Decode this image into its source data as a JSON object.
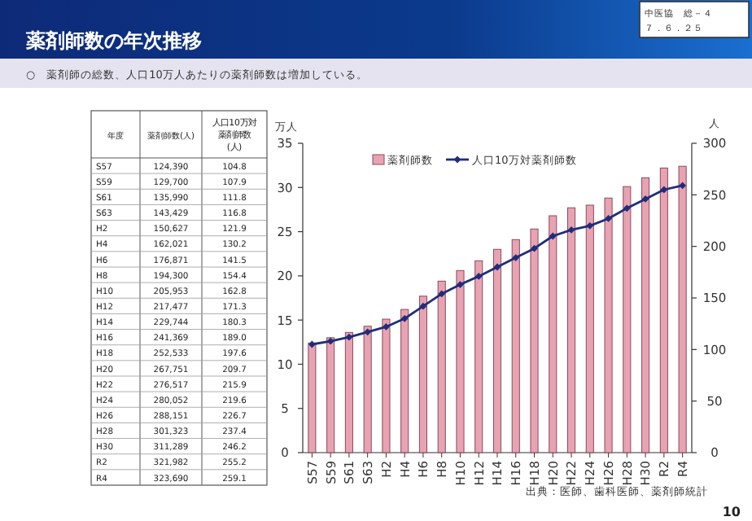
{
  "chart_data": [
    {
      "type": "other",
      "title": "薬剤師数の年次推移",
      "subtitle": "○　薬剤師の総数、人口10万人あたりの薬剤師数は増加している。",
      "xlabel": "年度",
      "categories": [
        "S57",
        "S59",
        "S61",
        "S63",
        "H2",
        "H4",
        "H6",
        "H8",
        "H10",
        "H12",
        "H14",
        "H16",
        "H18",
        "H20",
        "H22",
        "H24",
        "H26",
        "H28",
        "H30",
        "R2",
        "R4"
      ],
      "series": [
        {
          "name": "薬剤師数(人)",
          "values": [
            124390,
            129700,
            135990,
            143429,
            150627,
            162021,
            176871,
            194300,
            205953,
            217477,
            229744,
            241369,
            252533,
            267751,
            276517,
            280052,
            288151,
            301323,
            311289,
            321982,
            323690
          ],
          "value_labels": [
            "124,390",
            "129,700",
            "135,990",
            "143,429",
            "150,627",
            "162,021",
            "176,871",
            "194,300",
            "205,953",
            "217,477",
            "229,744",
            "241,369",
            "252,533",
            "267,751",
            "276,517",
            "280,052",
            "288,151",
            "301,323",
            "311,289",
            "321,982",
            "323,690"
          ]
        },
        {
          "name": "人口10万対薬剤師数(人)",
          "values": [
            104.8,
            107.9,
            111.8,
            116.8,
            121.9,
            130.2,
            141.5,
            154.4,
            162.8,
            171.3,
            180.3,
            189.0,
            197.6,
            209.7,
            215.9,
            219.6,
            226.7,
            237.4,
            246.2,
            255.2,
            259.1
          ],
          "value_labels": [
            "104.8",
            "107.9",
            "111.8",
            "116.8",
            "121.9",
            "130.2",
            "141.5",
            "154.4",
            "162.8",
            "171.3",
            "180.3",
            "189.0",
            "197.6",
            "209.7",
            "215.9",
            "219.6",
            "226.7",
            "237.4",
            "246.2",
            "255.2",
            "259.1"
          ]
        }
      ],
      "annotations": [
        "中医協　総－４",
        "７．６．２５",
        "10"
      ]
    },
    {
      "type": "bar",
      "ylabel": "万人",
      "y2label": "人",
      "categories": [
        "S57",
        "S59",
        "S61",
        "S63",
        "H2",
        "H4",
        "H6",
        "H8",
        "H10",
        "H12",
        "H14",
        "H16",
        "H18",
        "H20",
        "H22",
        "H24",
        "H26",
        "H28",
        "H30",
        "R2",
        "R4"
      ],
      "series": [
        {
          "name": "薬剤師数",
          "type": "bar",
          "color": "#e8a3b3",
          "values": [
            12.4,
            13.0,
            13.6,
            14.3,
            15.1,
            16.2,
            17.7,
            19.4,
            20.6,
            21.7,
            23.0,
            24.1,
            25.3,
            26.8,
            27.7,
            28.0,
            28.8,
            30.1,
            31.1,
            32.2,
            32.4
          ]
        },
        {
          "name": "人口10万対薬剤師数",
          "type": "line",
          "axis": "y2",
          "color": "#1f2d7a",
          "marker": "diamond",
          "values": [
            105,
            108,
            112,
            117,
            122,
            130,
            142,
            154,
            163,
            171,
            180,
            189,
            198,
            210,
            216,
            220,
            227,
            237,
            246,
            255,
            259
          ]
        }
      ],
      "ylim": [
        0,
        35
      ],
      "yticks": [
        0,
        5,
        10,
        15,
        20,
        25,
        30,
        35
      ],
      "y2lim": [
        0,
        300
      ],
      "y2ticks": [
        0,
        50,
        100,
        150,
        200,
        250,
        300
      ],
      "grid": false,
      "legend": "top",
      "annotations": [
        "出典：医師、歯科医師、薬剤師統計"
      ]
    }
  ]
}
